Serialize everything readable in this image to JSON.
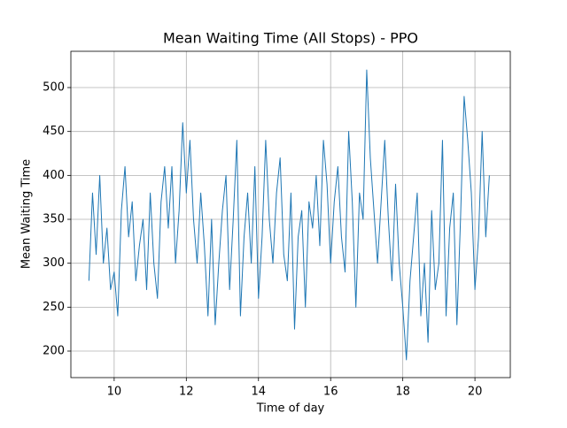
{
  "chart_data": {
    "type": "line",
    "title": "Mean Waiting Time (All Stops) - PPO",
    "x_label": "Time of day",
    "y_label": "Mean Waiting Time",
    "x": [
      9.3,
      9.4,
      9.5,
      9.6,
      9.7,
      9.8,
      9.9,
      10.0,
      10.1,
      10.2,
      10.3,
      10.4,
      10.5,
      10.6,
      10.7,
      10.8,
      10.9,
      11.0,
      11.1,
      11.2,
      11.3,
      11.4,
      11.5,
      11.6,
      11.7,
      11.8,
      11.9,
      12.0,
      12.1,
      12.2,
      12.3,
      12.4,
      12.5,
      12.6,
      12.7,
      12.8,
      12.9,
      13.0,
      13.1,
      13.2,
      13.3,
      13.4,
      13.5,
      13.6,
      13.7,
      13.8,
      13.9,
      14.0,
      14.1,
      14.2,
      14.3,
      14.4,
      14.5,
      14.6,
      14.7,
      14.8,
      14.9,
      15.0,
      15.1,
      15.2,
      15.3,
      15.4,
      15.5,
      15.6,
      15.7,
      15.8,
      15.9,
      16.0,
      16.1,
      16.2,
      16.3,
      16.4,
      16.5,
      16.6,
      16.7,
      16.8,
      16.9,
      17.0,
      17.1,
      17.2,
      17.3,
      17.4,
      17.5,
      17.6,
      17.7,
      17.8,
      17.9,
      18.0,
      18.1,
      18.2,
      18.3,
      18.4,
      18.5,
      18.6,
      18.7,
      18.8,
      18.9,
      19.0,
      19.1,
      19.2,
      19.3,
      19.4,
      19.5,
      19.6,
      19.7,
      19.8,
      19.9,
      20.0,
      20.1,
      20.2,
      20.3,
      20.4
    ],
    "series": [
      {
        "name": "PPO",
        "color": "#1f77b4",
        "values": [
          280,
          380,
          310,
          400,
          300,
          340,
          270,
          290,
          240,
          360,
          410,
          330,
          370,
          280,
          320,
          350,
          270,
          380,
          300,
          260,
          370,
          410,
          340,
          410,
          300,
          360,
          460,
          380,
          440,
          350,
          300,
          380,
          320,
          240,
          350,
          230,
          300,
          360,
          400,
          270,
          350,
          440,
          240,
          330,
          380,
          300,
          410,
          260,
          330,
          440,
          350,
          300,
          380,
          420,
          310,
          280,
          380,
          225,
          330,
          360,
          250,
          370,
          340,
          400,
          320,
          440,
          390,
          300,
          370,
          410,
          330,
          290,
          450,
          370,
          250,
          380,
          350,
          520,
          420,
          360,
          300,
          370,
          440,
          350,
          280,
          390,
          300,
          250,
          190,
          280,
          330,
          380,
          240,
          300,
          210,
          360,
          270,
          300,
          440,
          240,
          340,
          380,
          230,
          350,
          490,
          440,
          380,
          270,
          330,
          450,
          330,
          400
        ]
      }
    ],
    "xlim": [
      8.8,
      20.98
    ],
    "ylim": [
      169.8,
      541.3
    ],
    "xticks": [
      10,
      12,
      14,
      16,
      18,
      20
    ],
    "yticks": [
      200,
      250,
      300,
      350,
      400,
      450,
      500
    ],
    "grid": true
  }
}
